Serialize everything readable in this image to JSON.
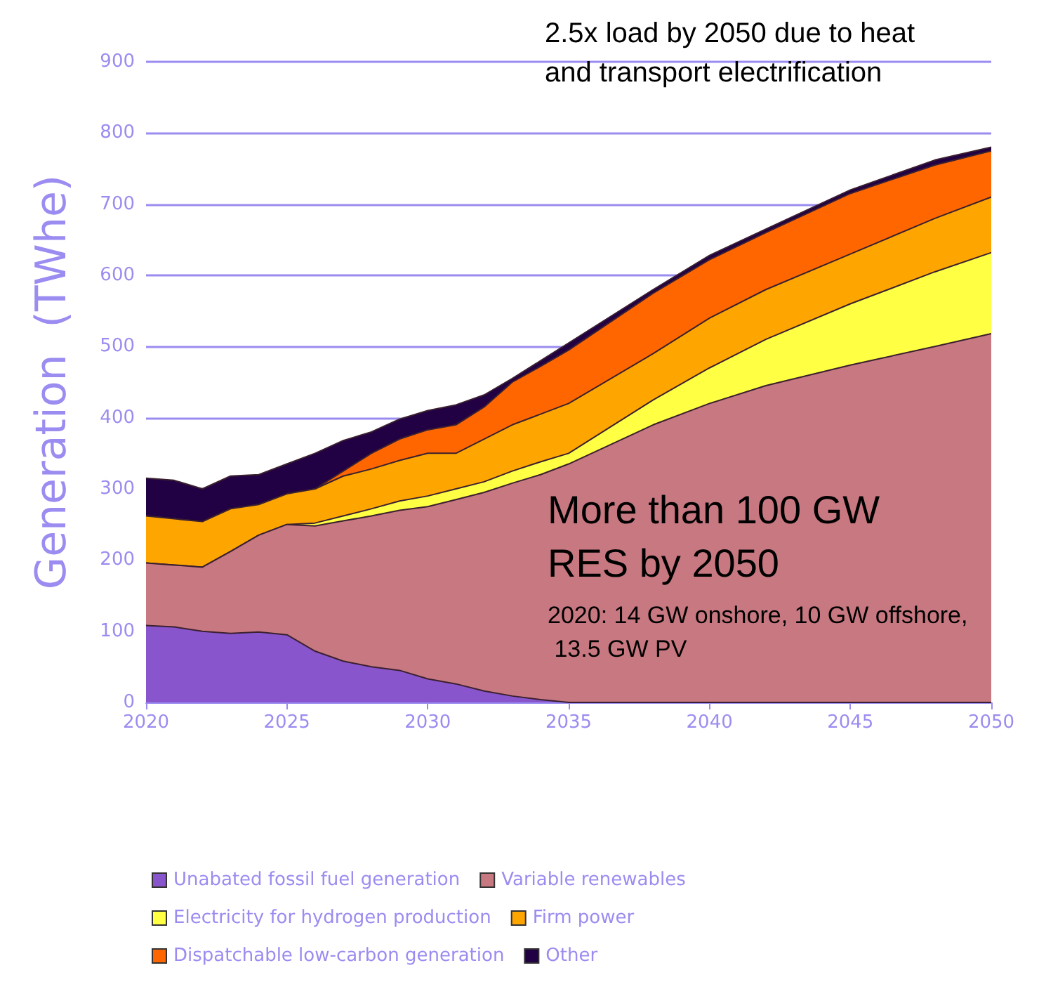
{
  "chart_data": {
    "type": "area",
    "stacked": true,
    "ylabel": "Generation  (TWhe)",
    "x": [
      2020,
      2021,
      2022,
      2023,
      2024,
      2025,
      2026,
      2027,
      2028,
      2029,
      2030,
      2031,
      2032,
      2033,
      2034,
      2035,
      2038,
      2040,
      2042,
      2045,
      2048,
      2050
    ],
    "series": [
      {
        "name": "Unabated fossil fuel generation",
        "color": "#8855cc",
        "values": [
          108,
          106,
          100,
          97,
          99,
          95,
          72,
          58,
          50,
          45,
          33,
          26,
          16,
          9,
          4,
          0,
          0,
          0,
          0,
          0,
          0,
          0
        ]
      },
      {
        "name": "Variable renewables",
        "color": "#c87880",
        "values": [
          88,
          87,
          90,
          115,
          136,
          155,
          176,
          197,
          212,
          225,
          242,
          259,
          279,
          299,
          316,
          335,
          390,
          420,
          445,
          474,
          500,
          518
        ]
      },
      {
        "name": "Electricity for hydrogen production",
        "color": "#ffff44",
        "values": [
          0,
          0,
          0,
          0,
          0,
          0,
          4,
          7,
          10,
          13,
          15,
          15,
          15,
          17,
          18,
          15,
          35,
          50,
          65,
          86,
          105,
          114
        ]
      },
      {
        "name": "Firm power",
        "color": "#ffa500",
        "values": [
          66,
          65,
          64,
          60,
          43,
          43,
          48,
          56,
          56,
          57,
          60,
          50,
          60,
          65,
          67,
          70,
          65,
          70,
          70,
          70,
          75,
          78
        ]
      },
      {
        "name": "Dispatchable low-carbon generation",
        "color": "#ff6600",
        "values": [
          0,
          0,
          0,
          0,
          0,
          0,
          0,
          7,
          22,
          30,
          33,
          40,
          45,
          60,
          67,
          75,
          85,
          82,
          80,
          85,
          75,
          65
        ]
      },
      {
        "name": "Other",
        "color": "#220044",
        "values": [
          53,
          54,
          46,
          46,
          42,
          42,
          50,
          43,
          30,
          28,
          27,
          28,
          17,
          5,
          8,
          10,
          5,
          6,
          5,
          5,
          7,
          5
        ]
      }
    ],
    "xlim": [
      2020,
      2050
    ],
    "xticks": [
      2020,
      2025,
      2030,
      2035,
      2040,
      2045,
      2050
    ],
    "ylim": [
      0,
      900
    ],
    "yticks": [
      0,
      100,
      200,
      300,
      400,
      500,
      600,
      700,
      800,
      900
    ],
    "grid": "y",
    "legend": "bottom",
    "marker": "none",
    "line_style": "solid",
    "annotations": [
      "2.5x load by 2050 due to heat and transport electrification",
      "More than 100 GW RES by 2050",
      "2020: 14 GW onshore, 10 GW offshore, 13.5 GW PV"
    ]
  }
}
